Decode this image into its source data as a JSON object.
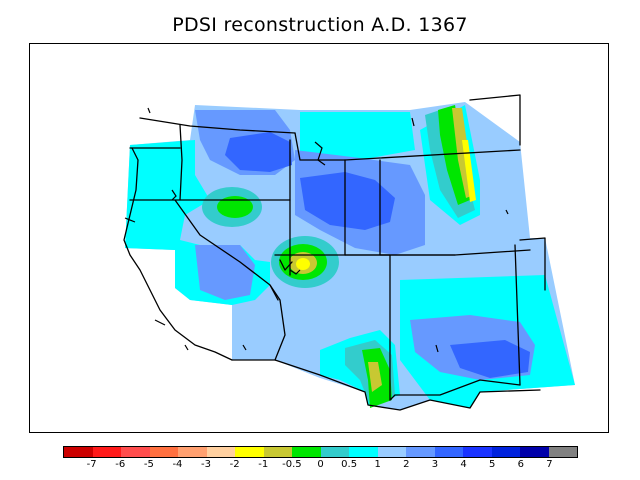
{
  "title": "PDSI reconstruction A.D. 1367",
  "legend": {
    "colors": [
      "#cc0000",
      "#ff1a1a",
      "#ff4d4d",
      "#ff7040",
      "#ffa070",
      "#ffd0a0",
      "#ffff00",
      "#c8c832",
      "#00e600",
      "#33cccc",
      "#00ffff",
      "#99ccff",
      "#6699ff",
      "#3366ff",
      "#1a33ff",
      "#0022dd",
      "#0000aa",
      "#808080"
    ],
    "labels": [
      "-7",
      "-6",
      "-5",
      "-4",
      "-3",
      "-2",
      "-1",
      "-0.5",
      "0",
      "0.5",
      "1",
      "2",
      "3",
      "4",
      "5",
      "6",
      "7"
    ]
  },
  "field_colors": {
    "c1": "#00ffff",
    "c2": "#99ccff",
    "c3": "#6699ff",
    "c4": "#3366ff",
    "c05": "#33cccc",
    "c0": "#00e600",
    "cm05": "#c8c832",
    "cm1": "#ffff00"
  }
}
